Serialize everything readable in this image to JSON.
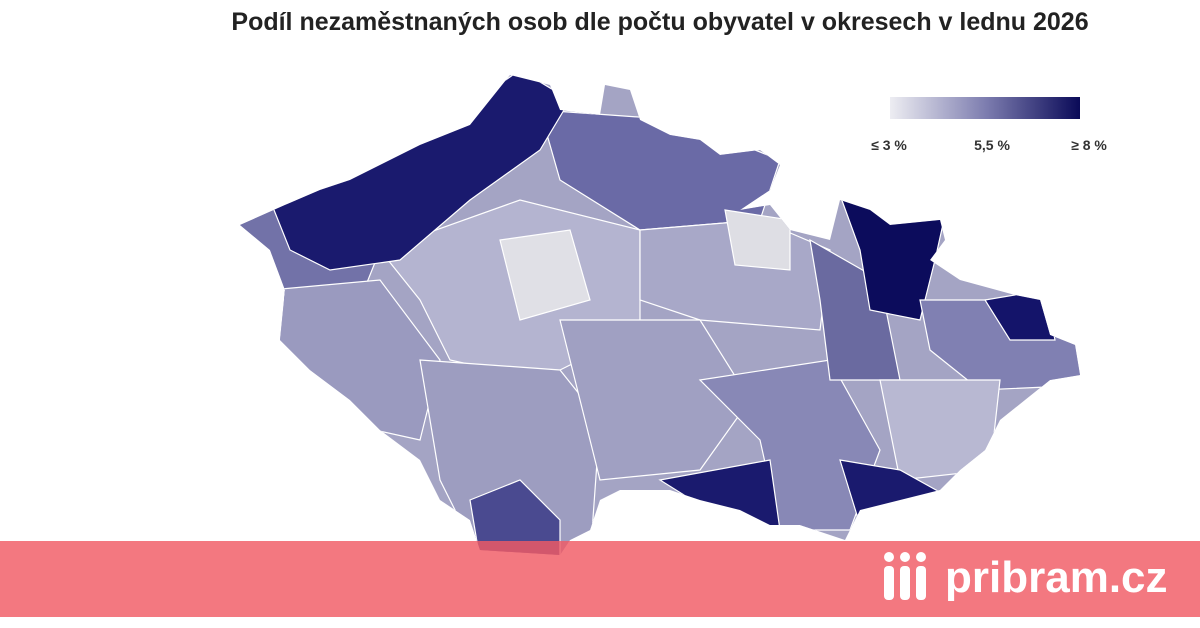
{
  "title": "Podíl nezaměstnaných osob dle počtu obyvatel v okresech v lednu 2026",
  "legend": {
    "labels": [
      "≤ 3 %",
      "5,5 %",
      "≥ 8 %"
    ]
  },
  "logo": "pribram.cz"
}
